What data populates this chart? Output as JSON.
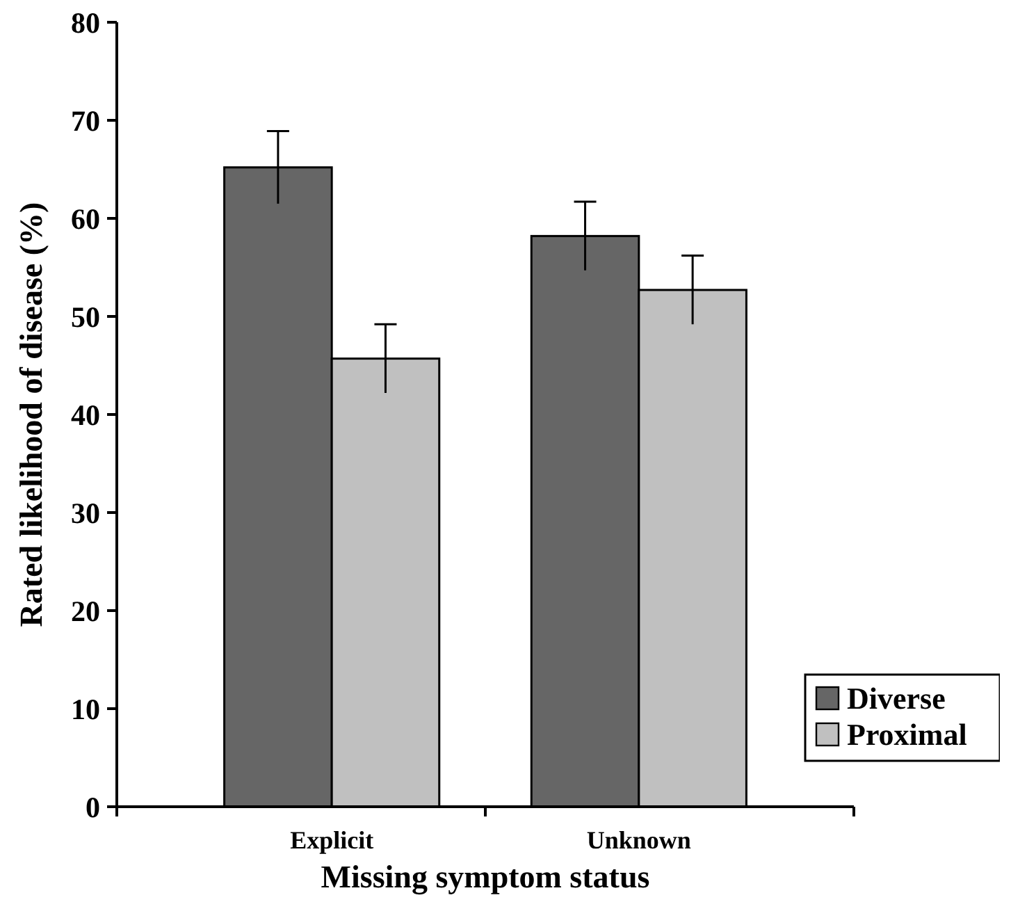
{
  "chart_data": {
    "type": "bar",
    "xlabel": "Missing symptom status",
    "ylabel": "Rated likelihood of disease (%)",
    "categories": [
      "Explicit",
      "Unknown"
    ],
    "series": [
      {
        "name": "Diverse",
        "color": "#666666",
        "values": [
          65.2,
          58.2
        ],
        "errors": [
          3.7,
          3.5
        ]
      },
      {
        "name": "Proximal",
        "color": "#c0c0c0",
        "values": [
          45.7,
          52.7
        ],
        "errors": [
          3.5,
          3.5
        ]
      }
    ],
    "ylim": [
      0,
      80
    ],
    "yticks": [
      0,
      10,
      20,
      30,
      40,
      50,
      60,
      70,
      80
    ],
    "legend": "bottom right"
  }
}
